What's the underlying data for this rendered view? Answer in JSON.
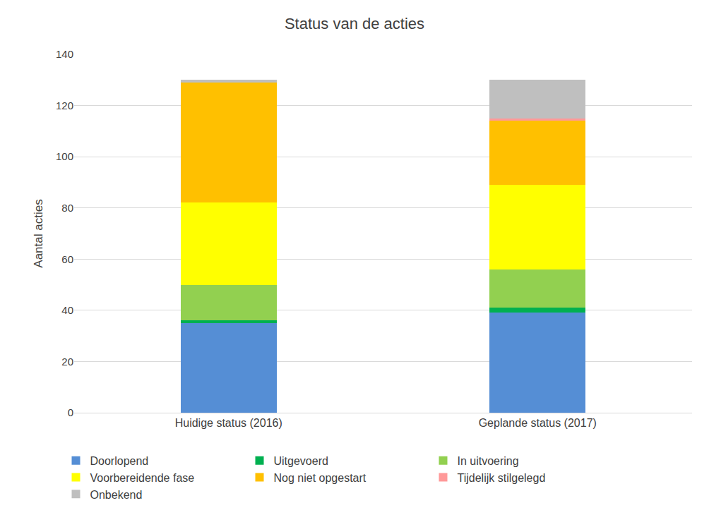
{
  "chart_data": {
    "type": "bar",
    "stacked": true,
    "title": "Status van de acties",
    "y_label": "Aantal acties",
    "categories": [
      "Huidige status (2016)",
      "Geplande status (2017)"
    ],
    "series": [
      {
        "name": "Doorlopend",
        "color": "#558ED5",
        "values": [
          35,
          39
        ]
      },
      {
        "name": "Uitgevoerd",
        "color": "#00B050",
        "values": [
          1,
          2
        ]
      },
      {
        "name": "In uitvoering",
        "color": "#92D050",
        "values": [
          14,
          15
        ]
      },
      {
        "name": "Voorbereidende fase",
        "color": "#FFFF00",
        "values": [
          32,
          33
        ]
      },
      {
        "name": "Nog niet opgestart",
        "color": "#FFC000",
        "values": [
          47,
          25
        ]
      },
      {
        "name": "Tijdelijk stilgelegd",
        "color": "#FF9999",
        "values": [
          0,
          1
        ]
      },
      {
        "name": "Onbekend",
        "color": "#BFBFBF",
        "values": [
          1,
          15
        ]
      }
    ],
    "ylim": [
      0,
      140
    ],
    "yticks": [
      0,
      20,
      40,
      60,
      80,
      100,
      120,
      140
    ],
    "grid": true,
    "legend": "bottom"
  }
}
